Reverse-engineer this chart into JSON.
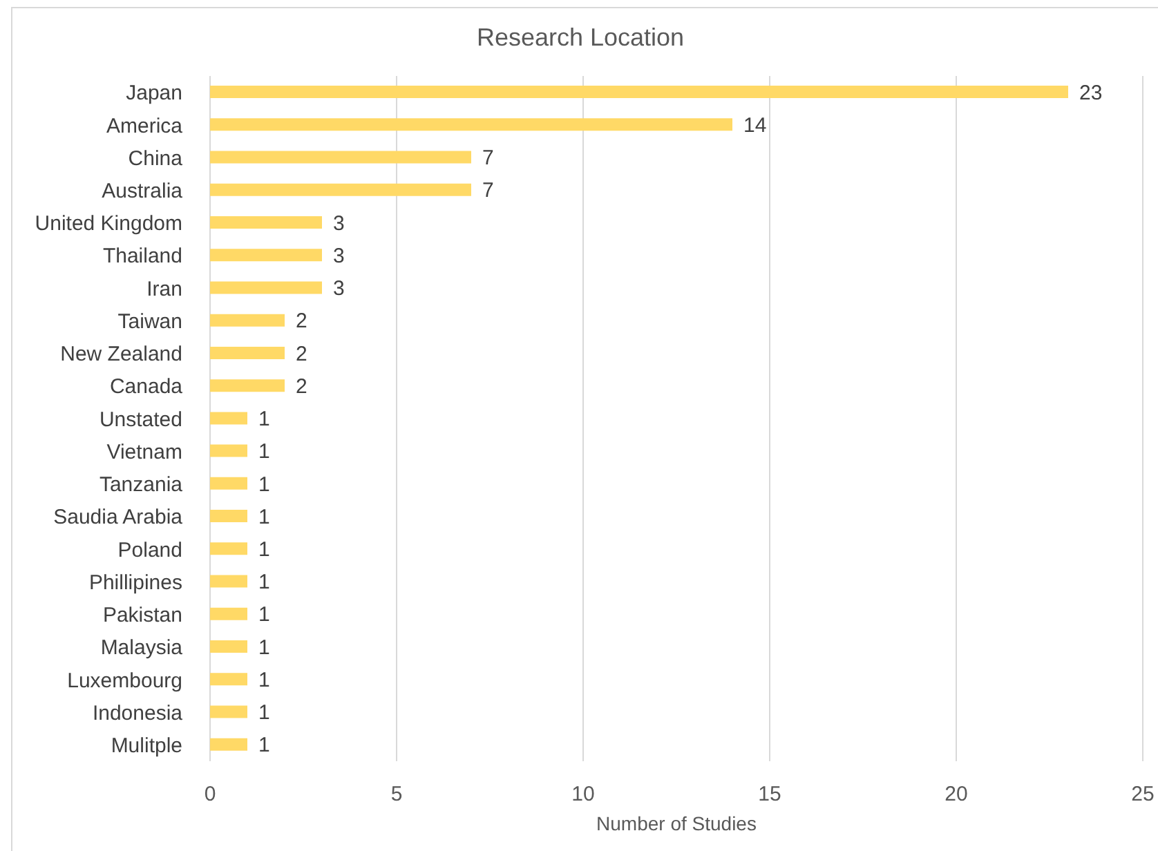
{
  "chart_data": {
    "type": "bar",
    "orientation": "horizontal",
    "title": "Research Location",
    "xlabel": "Number of Studies",
    "categories": [
      "Japan",
      "America",
      "China",
      "Australia",
      "United Kingdom",
      "Thailand",
      "Iran",
      "Taiwan",
      "New Zealand",
      "Canada",
      "Unstated",
      "Vietnam",
      "Tanzania",
      "Saudia Arabia",
      "Poland",
      "Phillipines",
      "Pakistan",
      "Malaysia",
      "Luxembourg",
      "Indonesia",
      "Mulitple"
    ],
    "values": [
      23,
      14,
      7,
      7,
      3,
      3,
      3,
      2,
      2,
      2,
      1,
      1,
      1,
      1,
      1,
      1,
      1,
      1,
      1,
      1,
      1
    ],
    "color": "#ffd966",
    "xlim": [
      0,
      25
    ],
    "xticks": [
      0,
      5,
      10,
      15,
      20,
      25
    ],
    "grid": "x",
    "data_labels": true
  }
}
